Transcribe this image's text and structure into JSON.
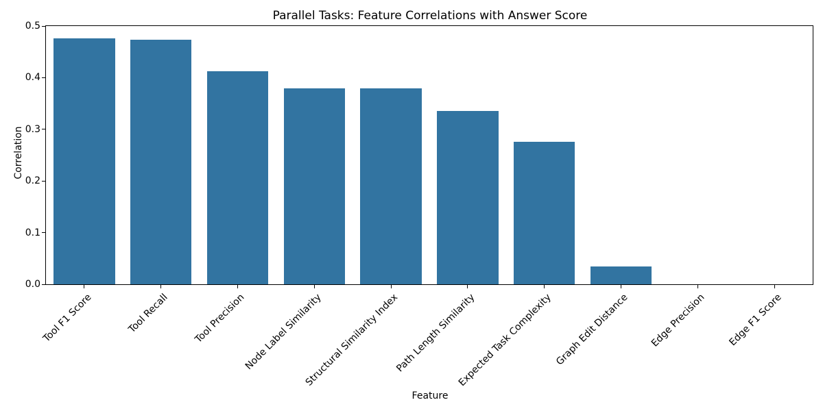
{
  "chart_data": {
    "type": "bar",
    "title": "Parallel Tasks: Feature Correlations with Answer Score",
    "xlabel": "Feature",
    "ylabel": "Correlation",
    "categories": [
      "Tool F1 Score",
      "Tool Recall",
      "Tool Precision",
      "Node Label Similarity",
      "Structural Similarity Index",
      "Path Length Similarity",
      "Expected Task Complexity",
      "Graph Edit Distance",
      "Edge Precision",
      "Edge F1 Score"
    ],
    "values": [
      0.476,
      0.473,
      0.413,
      0.379,
      0.379,
      0.335,
      0.276,
      0.034,
      0.0,
      0.0
    ],
    "ylim": [
      0.0,
      0.5
    ],
    "yticks": [
      0.0,
      0.1,
      0.2,
      0.3,
      0.4,
      0.5
    ],
    "ytick_labels": [
      "0.0",
      "0.1",
      "0.2",
      "0.3",
      "0.4",
      "0.5"
    ],
    "bar_color": "#3274a1",
    "bar_width_fraction": 0.8,
    "x_tick_rotation_deg": 45,
    "grid": false,
    "legend": "none"
  }
}
